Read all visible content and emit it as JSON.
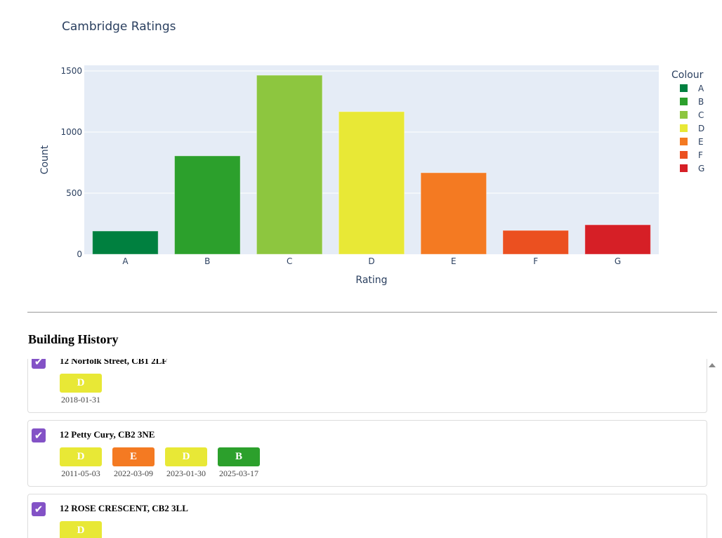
{
  "chart_data": {
    "type": "bar",
    "title": "Cambridge Ratings",
    "xlabel": "Rating",
    "ylabel": "Count",
    "ylim": [
      0,
      1546
    ],
    "yticks": [
      0,
      500,
      1000,
      1500
    ],
    "grid": true,
    "categories": [
      "A",
      "B",
      "C",
      "D",
      "E",
      "F",
      "G"
    ],
    "values": [
      190,
      805,
      1465,
      1167,
      667,
      195,
      241
    ],
    "colors": [
      "#00803f",
      "#2ca02c",
      "#8dc63f",
      "#e8e836",
      "#f47a22",
      "#eb5020",
      "#d61f26"
    ],
    "legend": {
      "title": "Colour",
      "placement": "right",
      "entries": [
        "A",
        "B",
        "C",
        "D",
        "E",
        "F",
        "G"
      ]
    }
  },
  "history": {
    "title": "Building History",
    "cards": [
      {
        "address": "12 Norfolk Street, CB1 2LF",
        "ratings": [
          {
            "grade": "D",
            "date": "2018-01-31"
          }
        ],
        "clipped": true
      },
      {
        "address": "12 Petty Cury, CB2 3NE",
        "ratings": [
          {
            "grade": "D",
            "date": "2011-05-03"
          },
          {
            "grade": "E",
            "date": "2022-03-09"
          },
          {
            "grade": "D",
            "date": "2023-01-30"
          },
          {
            "grade": "B",
            "date": "2025-03-17"
          }
        ]
      },
      {
        "address": "12 ROSE CRESCENT, CB2 3LL",
        "ratings": [
          {
            "grade": "D",
            "date": ""
          }
        ]
      }
    ]
  },
  "check_icon": "✔"
}
